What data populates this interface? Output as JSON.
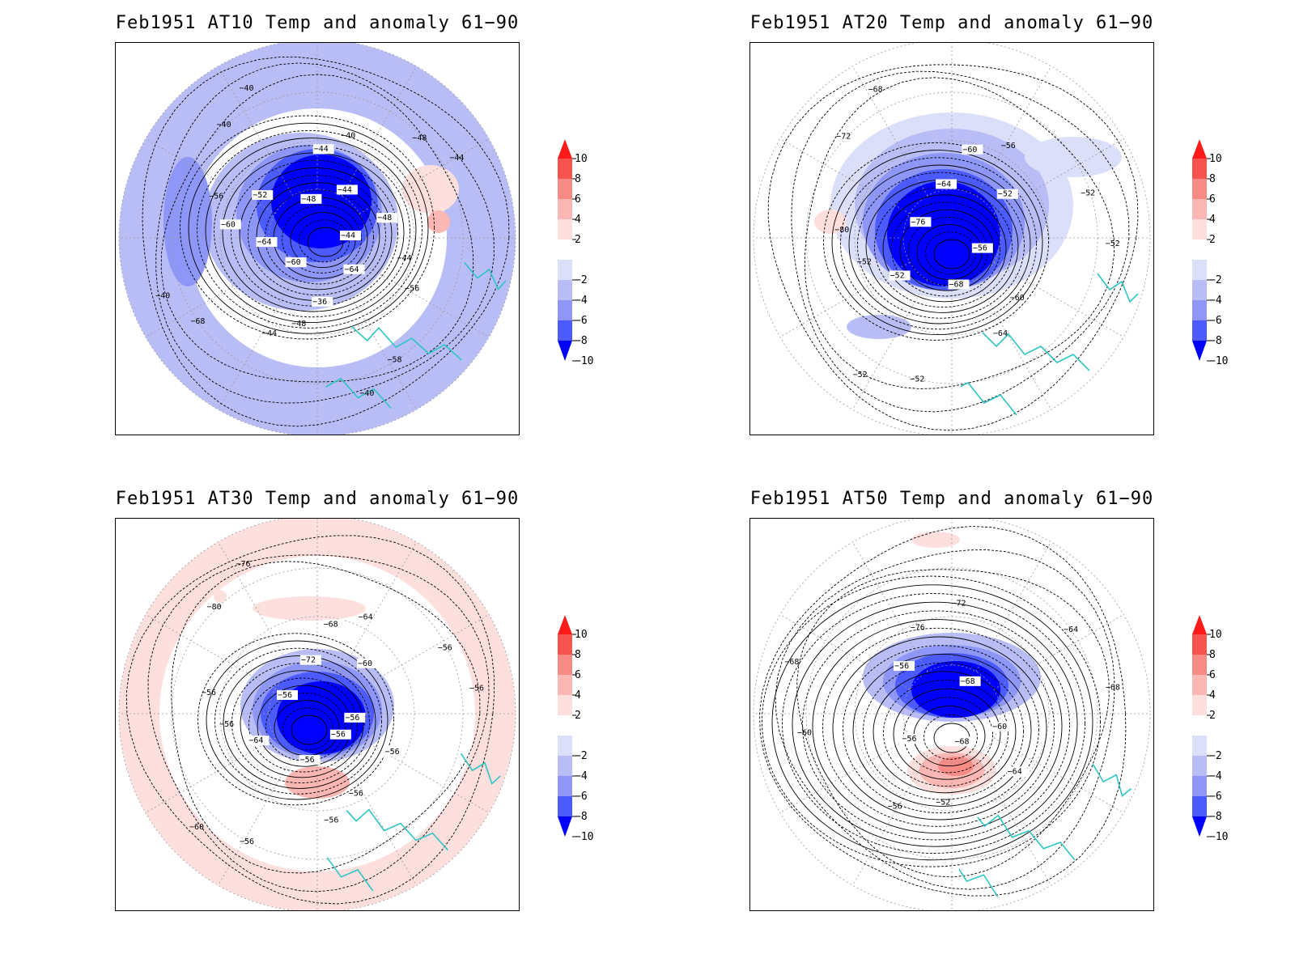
{
  "colors": {
    "coast": "#2ec4c4",
    "contour": "#000000",
    "grid": "#9a9a9a",
    "colorbar": [
      "#0000ff",
      "#4b5bff",
      "#8e96f8",
      "#b8bef5",
      "#dcdff9",
      "#ffffff",
      "#fde0de",
      "#fbb7b3",
      "#f88b86",
      "#f6544f",
      "#ff1a1a"
    ]
  },
  "colorbar_labels": [
    "10",
    "8",
    "6",
    "4",
    "2",
    "−2",
    "−4",
    "−6",
    "−8",
    "−10"
  ],
  "panels": [
    {
      "id": "at10",
      "title": "Feb1951 AT10 Temp and anomaly 61−90",
      "anomaly_levels_shown": [
        -10,
        -8,
        -6,
        -4,
        -2,
        2
      ],
      "contour_labels": [
        "−44",
        "−44",
        "−56",
        "−64",
        "−58",
        "−40",
        "−36",
        "−48",
        "−44",
        "−60",
        "−68",
        "−40",
        "−64",
        "−60",
        "−56",
        "−52",
        "−40",
        "−40",
        "−48",
        "−44",
        "−40",
        "−44",
        "−48",
        "−44",
        "−48"
      ]
    },
    {
      "id": "at20",
      "title": "Feb1951 AT20 Temp and anomaly 61−90",
      "anomaly_levels_shown": [
        -10,
        -8,
        -6,
        -4,
        -2,
        2
      ],
      "contour_labels": [
        "−56",
        "−60",
        "−64",
        "−68",
        "−52",
        "−52",
        "−52",
        "−52",
        "−80",
        "−76",
        "−72",
        "−68",
        "−64",
        "−60",
        "−56",
        "−52",
        "−52",
        "−52"
      ]
    },
    {
      "id": "at30",
      "title": "Feb1951 AT30 Temp and anomaly 61−90",
      "anomaly_levels_shown": [
        -10,
        -8,
        -6,
        -4,
        -2,
        2,
        4
      ],
      "contour_labels": [
        "−56",
        "−56",
        "−56",
        "−56",
        "−56",
        "−60",
        "−64",
        "−56",
        "−56",
        "−56",
        "−80",
        "−76",
        "−72",
        "−68",
        "−64",
        "−60",
        "−56",
        "−56",
        "−56",
        "−56"
      ]
    },
    {
      "id": "at50",
      "title": "Feb1951 AT50 Temp and anomaly 61−90",
      "anomaly_levels_shown": [
        -10,
        -8,
        -6,
        -4,
        -2,
        2,
        4
      ],
      "contour_labels": [
        "−68",
        "−52",
        "−56",
        "−56",
        "−60",
        "−68",
        "−56",
        "−76",
        "−72",
        "−68",
        "−64",
        "−68",
        "−60",
        "−64"
      ]
    }
  ]
}
